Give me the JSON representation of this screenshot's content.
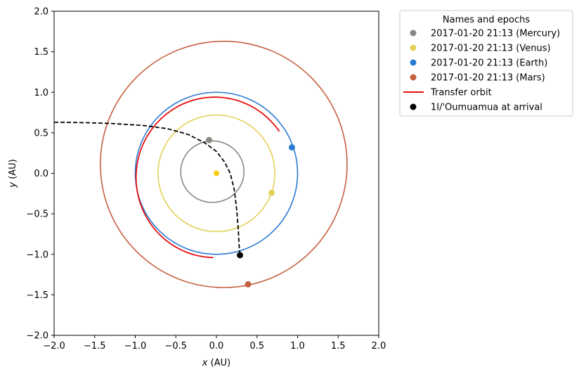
{
  "chart_data": {
    "type": "scatter",
    "xlabel_var": "x",
    "xlabel_unit": "(AU)",
    "ylabel_var": "y",
    "ylabel_unit": "(AU)",
    "xlim": [
      -2.0,
      2.0
    ],
    "ylim": [
      -2.0,
      2.0
    ],
    "xticks": [
      "−2.0",
      "−1.5",
      "−1.0",
      "−0.5",
      "0.0",
      "0.5",
      "1.0",
      "1.5",
      "2.0"
    ],
    "yticks": [
      "−2.0",
      "−1.5",
      "−1.0",
      "−0.5",
      "0.0",
      "0.5",
      "1.0",
      "1.5",
      "2.0"
    ],
    "grid": false,
    "legend_position": "outside-right-top",
    "orbits": [
      {
        "name": "Mercury",
        "color": "#888782",
        "center": [
          -0.05,
          0.02
        ],
        "a": 0.39,
        "b": 0.38
      },
      {
        "name": "Venus",
        "color": "#e3d159",
        "center": [
          0.0,
          0.0
        ],
        "a": 0.72,
        "b": 0.72
      },
      {
        "name": "Earth",
        "color": "#2a7ad2",
        "center": [
          0.0,
          0.0
        ],
        "a": 1.0,
        "b": 1.0
      },
      {
        "name": "Mars",
        "color": "#c56040",
        "center": [
          0.09,
          0.11
        ],
        "a": 1.52,
        "b": 1.52
      }
    ],
    "planets": [
      {
        "name": "Mercury",
        "color": "#888782",
        "x": -0.09,
        "y": 0.41
      },
      {
        "name": "Venus",
        "color": "#e3d159",
        "x": 0.68,
        "y": -0.24
      },
      {
        "name": "Earth",
        "color": "#2a7ad2",
        "x": 0.93,
        "y": 0.32
      },
      {
        "name": "Mars",
        "color": "#c56040",
        "x": 0.39,
        "y": -1.37
      }
    ],
    "sun": {
      "color": "#f5cc13",
      "x": 0.0,
      "y": 0.0
    },
    "transfer_orbit": {
      "color": "#e81010",
      "center": [
        -0.02,
        -0.05
      ],
      "a": 0.97,
      "b": 0.99,
      "from_deg": 35,
      "to_deg": 269
    },
    "oumuamua_trajectory": {
      "color": "#000000",
      "points": [
        [
          -2.0,
          0.63
        ],
        [
          -1.6,
          0.625
        ],
        [
          -1.3,
          0.615
        ],
        [
          -0.9,
          0.59
        ],
        [
          -0.6,
          0.55
        ],
        [
          -0.35,
          0.48
        ],
        [
          -0.15,
          0.38
        ],
        [
          0.0,
          0.27
        ],
        [
          0.1,
          0.14
        ],
        [
          0.17,
          0.0
        ],
        [
          0.22,
          -0.2
        ],
        [
          0.25,
          -0.45
        ],
        [
          0.27,
          -0.7
        ],
        [
          0.28,
          -0.9
        ],
        [
          0.29,
          -1.01
        ]
      ]
    },
    "arrival_point": {
      "color": "#000000",
      "x": 0.29,
      "y": -1.01
    },
    "legend": {
      "title": "Names and epochs",
      "entries": [
        {
          "label": "2017-01-20 21:13 (Mercury)",
          "kind": "marker",
          "color": "#888782"
        },
        {
          "label": "2017-01-20 21:13 (Venus)",
          "kind": "marker",
          "color": "#e3d159"
        },
        {
          "label": "2017-01-20 21:13 (Earth)",
          "kind": "marker",
          "color": "#2a7ad2"
        },
        {
          "label": "2017-01-20 21:13 (Mars)",
          "kind": "marker",
          "color": "#c56040"
        },
        {
          "label": "Transfer orbit",
          "kind": "line",
          "color": "#e81010"
        },
        {
          "label": "1I/'Oumuamua at arrival",
          "kind": "marker",
          "color": "#000000"
        }
      ]
    }
  }
}
